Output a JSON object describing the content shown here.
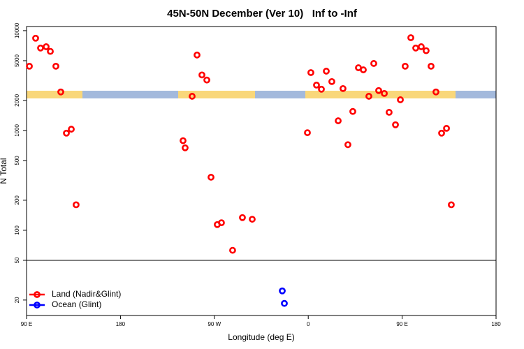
{
  "chart_data": {
    "type": "scatter",
    "title": "45N-50N December (Ver 10)   Inf to -Inf",
    "x_label": "Longitude (deg E)",
    "y_label": "N Total",
    "log_y": true,
    "xlim": [
      -270,
      180
    ],
    "xticks": [
      {
        "value": -270,
        "label": "90 E"
      },
      {
        "value": -180,
        "label": "180"
      },
      {
        "value": -90,
        "label": "90 W"
      },
      0,
      {
        "value": 90,
        "label": "90 E"
      },
      180
    ],
    "ylim": [
      14,
      11000
    ],
    "yticks": [
      20,
      50,
      100,
      200,
      500,
      1000,
      2000,
      5000,
      10000
    ],
    "hline": 50,
    "legend": "bottom-left",
    "series": [
      {
        "name": "Land (Nadir&Glint)",
        "color": "#ff0000",
        "x": [
          -267.3,
          -261.3,
          -256.6,
          -251.2,
          -247.2,
          -241.9,
          -237.2,
          -231.8,
          -227.1,
          -222.5,
          -120,
          -118,
          -111.3,
          -106.6,
          -101.9,
          -97.2,
          -93.2,
          -87.2,
          -83.2,
          -72.5,
          -63.1,
          -53.7,
          -0.8,
          2.5,
          7.9,
          12.6,
          17.3,
          22.6,
          28.7,
          33.3,
          38.0,
          42.7,
          48.1,
          52.8,
          58.1,
          62.8,
          67.5,
          72.9,
          77.5,
          83.6,
          88.3,
          92.9,
          98.3,
          103.0,
          108.3,
          113.0,
          117.7,
          122.4,
          127.8,
          132.5,
          137.1
        ],
        "values": [
          4400,
          8400,
          6700,
          6900,
          6200,
          4400,
          2430,
          940,
          1030,
          180,
          790,
          670,
          2200,
          5700,
          3600,
          3200,
          340,
          114,
          119,
          63,
          134,
          129,
          950,
          3800,
          2850,
          2590,
          3930,
          3090,
          1250,
          2630,
          720,
          1550,
          4250,
          4050,
          2200,
          4690,
          2510,
          2350,
          1520,
          1140,
          2030,
          4400,
          8500,
          6700,
          6900,
          6300,
          4400,
          2430,
          940,
          1050,
          180
        ]
      },
      {
        "name": "Ocean (Glint)",
        "color": "#0000ff",
        "x": [
          -24.9,
          -22.9
        ],
        "values": [
          24.7,
          18.5
        ]
      }
    ]
  }
}
